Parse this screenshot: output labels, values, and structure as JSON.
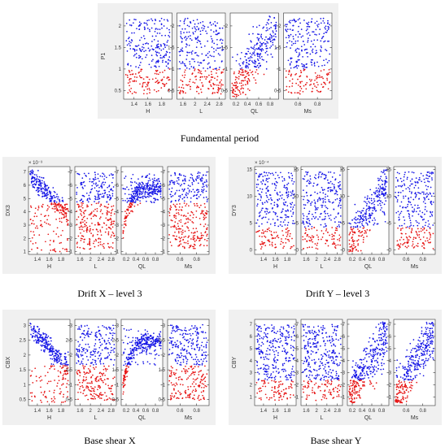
{
  "colors": {
    "above": "#1414e6",
    "below": "#e61414",
    "figure_bg": "#f0f0f0",
    "axes_bg": "#ffffff",
    "axis": "#333333"
  },
  "captions": {
    "fundamental_period": "Fundamental period",
    "drift_x": "Drift X – level 3",
    "drift_y": "Drift Y – level 3",
    "base_shear_x": "Base shear X",
    "base_shear_y": "Base shear Y"
  },
  "chart_data": [
    {
      "type": "scatter",
      "id": "fundamental-period",
      "ylabel": "P1",
      "exponent_label": "",
      "ylim": [
        0.3,
        2.3
      ],
      "yticks": [
        0.5,
        1,
        1.5,
        2
      ],
      "yticklabels": [
        "0.5",
        "1",
        "1.5",
        "2"
      ],
      "threshold": 1.0,
      "points_per_panel": 300,
      "panels": [
        {
          "xlabel": "H",
          "xlim": [
            1.25,
            1.95
          ],
          "xticks": [
            1.4,
            1.6,
            1.8
          ],
          "xticklabels": [
            "1.4",
            "1.6",
            "1.8"
          ],
          "trend": "random"
        },
        {
          "xlabel": "L",
          "xlim": [
            1.4,
            3.0
          ],
          "xticks": [
            1.6,
            2,
            2.4,
            2.8
          ],
          "xticklabels": [
            "1.6",
            "2",
            "2.4",
            "2.8"
          ],
          "trend": "random"
        },
        {
          "xlabel": "QL",
          "xlim": [
            0.1,
            0.95
          ],
          "xticks": [
            0.2,
            0.4,
            0.6,
            0.8
          ],
          "xticklabels": [
            "0.2",
            "0.4",
            "0.6",
            "0.8"
          ],
          "trend": "increasing"
        },
        {
          "xlabel": "Ms",
          "xlim": [
            0.45,
            0.95
          ],
          "xticks": [
            0.6,
            0.8
          ],
          "xticklabels": [
            "0.6",
            "0.8"
          ],
          "trend": "random"
        }
      ]
    },
    {
      "type": "scatter",
      "id": "drift-x-level-3",
      "ylabel": "DX3",
      "exponent_label": "× 10⁻³",
      "ylim": [
        0.8,
        7.4
      ],
      "yticks": [
        1,
        2,
        3,
        4,
        5,
        6,
        7
      ],
      "yticklabels": [
        "1",
        "2",
        "3",
        "4",
        "5",
        "6",
        "7"
      ],
      "threshold": 4.7,
      "points_per_panel": 350,
      "panels": [
        {
          "xlabel": "H",
          "xlim": [
            1.25,
            1.95
          ],
          "xticks": [
            1.4,
            1.6,
            1.8
          ],
          "xticklabels": [
            "1.4",
            "1.6",
            "1.8"
          ],
          "trend": "decreasing"
        },
        {
          "xlabel": "L",
          "xlim": [
            1.4,
            3.0
          ],
          "xticks": [
            1.6,
            2,
            2.4,
            2.8
          ],
          "xticklabels": [
            "1.6",
            "2",
            "2.4",
            "2.8"
          ],
          "trend": "random"
        },
        {
          "xlabel": "QL",
          "xlim": [
            0.1,
            0.95
          ],
          "xticks": [
            0.2,
            0.4,
            0.6,
            0.8
          ],
          "xticklabels": [
            "0.2",
            "0.4",
            "0.6",
            "0.8"
          ],
          "trend": "saturating"
        },
        {
          "xlabel": "Ms",
          "xlim": [
            0.45,
            0.95
          ],
          "xticks": [
            0.6,
            0.8
          ],
          "xticklabels": [
            "0.6",
            "0.8"
          ],
          "trend": "random"
        }
      ]
    },
    {
      "type": "scatter",
      "id": "drift-y-level-3",
      "ylabel": "DY3",
      "exponent_label": "× 10⁻⁴",
      "ylim": [
        -0.8,
        15.5
      ],
      "yticks": [
        0,
        5,
        10,
        15
      ],
      "yticklabels": [
        "0",
        "5",
        "10",
        "15"
      ],
      "threshold": 4.2,
      "points_per_panel": 300,
      "panels": [
        {
          "xlabel": "H",
          "xlim": [
            1.25,
            1.95
          ],
          "xticks": [
            1.4,
            1.6,
            1.8
          ],
          "xticklabels": [
            "1.4",
            "1.6",
            "1.8"
          ],
          "trend": "random"
        },
        {
          "xlabel": "L",
          "xlim": [
            1.4,
            3.0
          ],
          "xticks": [
            1.6,
            2,
            2.4,
            2.8
          ],
          "xticklabels": [
            "1.6",
            "2",
            "2.4",
            "2.8"
          ],
          "trend": "random"
        },
        {
          "xlabel": "QL",
          "xlim": [
            0.1,
            0.95
          ],
          "xticks": [
            0.2,
            0.4,
            0.6,
            0.8
          ],
          "xticklabels": [
            "0.2",
            "0.4",
            "0.6",
            "0.8"
          ],
          "trend": "increasing"
        },
        {
          "xlabel": "Ms",
          "xlim": [
            0.45,
            0.95
          ],
          "xticks": [
            0.6,
            0.8
          ],
          "xticklabels": [
            "0.6",
            "0.8"
          ],
          "trend": "random"
        }
      ]
    },
    {
      "type": "scatter",
      "id": "base-shear-x",
      "ylabel": "CBX",
      "exponent_label": "",
      "ylim": [
        0.3,
        3.2
      ],
      "yticks": [
        0.5,
        1,
        1.5,
        2,
        2.5,
        3
      ],
      "yticklabels": [
        "0.5",
        "1",
        "1.5",
        "2",
        "2.5",
        "3"
      ],
      "threshold": 1.65,
      "points_per_panel": 350,
      "panels": [
        {
          "xlabel": "H",
          "xlim": [
            1.25,
            1.95
          ],
          "xticks": [
            1.4,
            1.6,
            1.8
          ],
          "xticklabels": [
            "1.4",
            "1.6",
            "1.8"
          ],
          "trend": "decreasing"
        },
        {
          "xlabel": "L",
          "xlim": [
            1.4,
            3.0
          ],
          "xticks": [
            1.6,
            2,
            2.4,
            2.8
          ],
          "xticklabels": [
            "1.6",
            "2",
            "2.4",
            "2.8"
          ],
          "trend": "random"
        },
        {
          "xlabel": "QL",
          "xlim": [
            0.1,
            0.95
          ],
          "xticks": [
            0.2,
            0.4,
            0.6,
            0.8
          ],
          "xticklabels": [
            "0.2",
            "0.4",
            "0.6",
            "0.8"
          ],
          "trend": "saturating"
        },
        {
          "xlabel": "Ms",
          "xlim": [
            0.45,
            0.95
          ],
          "xticks": [
            0.6,
            0.8
          ],
          "xticklabels": [
            "0.6",
            "0.8"
          ],
          "trend": "random"
        }
      ]
    },
    {
      "type": "scatter",
      "id": "base-shear-y",
      "ylabel": "CBY",
      "exponent_label": "",
      "ylim": [
        0.3,
        7.4
      ],
      "yticks": [
        1,
        2,
        3,
        4,
        5,
        6,
        7
      ],
      "yticklabels": [
        "1",
        "2",
        "3",
        "4",
        "5",
        "6",
        "7"
      ],
      "threshold": 2.4,
      "points_per_panel": 350,
      "panels": [
        {
          "xlabel": "H",
          "xlim": [
            1.25,
            1.95
          ],
          "xticks": [
            1.4,
            1.6,
            1.8
          ],
          "xticklabels": [
            "1.4",
            "1.6",
            "1.8"
          ],
          "trend": "random"
        },
        {
          "xlabel": "L",
          "xlim": [
            1.4,
            3.0
          ],
          "xticks": [
            1.6,
            2,
            2.4,
            2.8
          ],
          "xticklabels": [
            "1.6",
            "2",
            "2.4",
            "2.8"
          ],
          "trend": "random"
        },
        {
          "xlabel": "QL",
          "xlim": [
            0.1,
            0.95
          ],
          "xticks": [
            0.2,
            0.4,
            0.6,
            0.8
          ],
          "xticklabels": [
            "0.2",
            "0.4",
            "0.6",
            "0.8"
          ],
          "trend": "increasing"
        },
        {
          "xlabel": "Ms",
          "xlim": [
            0.45,
            0.95
          ],
          "xticks": [
            0.6,
            0.8
          ],
          "xticklabels": [
            "0.6",
            "0.8"
          ],
          "trend": "increasing"
        }
      ]
    }
  ]
}
